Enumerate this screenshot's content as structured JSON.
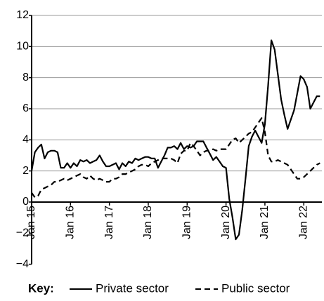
{
  "chart_data": {
    "type": "line",
    "legend_title": "Key:",
    "categories": [
      "Jan 15",
      null,
      null,
      null,
      null,
      null,
      null,
      null,
      null,
      null,
      null,
      null,
      "Jan 16",
      null,
      null,
      null,
      null,
      null,
      null,
      null,
      null,
      null,
      null,
      null,
      "Jan 17",
      null,
      null,
      null,
      null,
      null,
      null,
      null,
      null,
      null,
      null,
      null,
      "Jan 18",
      null,
      null,
      null,
      null,
      null,
      null,
      null,
      null,
      null,
      null,
      null,
      "Jan 19",
      null,
      null,
      null,
      null,
      null,
      null,
      null,
      null,
      null,
      null,
      null,
      "Jan 20",
      null,
      null,
      null,
      null,
      null,
      null,
      null,
      null,
      null,
      null,
      null,
      "Jan 21",
      null,
      null,
      null,
      null,
      null,
      null,
      null,
      null,
      null,
      null,
      null,
      "Jan 22",
      null,
      null,
      null,
      null,
      null
    ],
    "series": [
      {
        "name": "Private sector",
        "color": "#000000",
        "dash": false,
        "values": [
          2.0,
          3.2,
          3.5,
          3.7,
          2.8,
          3.2,
          3.3,
          3.3,
          3.2,
          2.2,
          2.2,
          2.5,
          2.2,
          2.5,
          2.3,
          2.7,
          2.6,
          2.7,
          2.5,
          2.6,
          2.7,
          3.0,
          2.6,
          2.3,
          2.3,
          2.4,
          2.5,
          2.1,
          2.5,
          2.3,
          2.6,
          2.5,
          2.8,
          2.7,
          2.8,
          2.9,
          2.9,
          2.8,
          2.8,
          2.2,
          2.6,
          3.0,
          3.5,
          3.5,
          3.6,
          3.4,
          3.8,
          3.4,
          3.6,
          3.5,
          3.6,
          3.9,
          3.9,
          3.9,
          3.5,
          3.1,
          2.7,
          2.9,
          2.6,
          2.3,
          2.2,
          0.2,
          -1.0,
          -2.4,
          -2.1,
          -0.5,
          1.5,
          3.6,
          4.2,
          4.6,
          4.2,
          3.8,
          5.0,
          7.5,
          10.4,
          9.8,
          8.2,
          6.6,
          5.6,
          4.7,
          5.3,
          5.9,
          7.0,
          8.1,
          7.9,
          7.4,
          6.0,
          6.4,
          6.8,
          6.8
        ]
      },
      {
        "name": "Public sector",
        "color": "#000000",
        "dash": true,
        "values": [
          0.6,
          0.3,
          0.4,
          0.8,
          0.9,
          1.0,
          1.1,
          1.3,
          1.3,
          1.4,
          1.5,
          1.4,
          1.5,
          1.6,
          1.7,
          1.8,
          1.6,
          1.5,
          1.7,
          1.5,
          1.4,
          1.5,
          1.4,
          1.3,
          1.3,
          1.5,
          1.5,
          1.6,
          1.8,
          1.8,
          1.9,
          2.0,
          2.1,
          2.3,
          2.4,
          2.4,
          2.3,
          2.5,
          2.6,
          2.7,
          2.8,
          2.8,
          2.8,
          2.8,
          2.7,
          2.5,
          3.1,
          3.3,
          3.3,
          3.8,
          3.6,
          3.3,
          3.0,
          3.2,
          3.3,
          3.3,
          3.4,
          3.3,
          3.4,
          3.4,
          3.4,
          3.7,
          4.0,
          4.1,
          3.8,
          4.0,
          4.2,
          4.4,
          4.5,
          4.8,
          5.1,
          5.4,
          4.5,
          3.0,
          2.6,
          2.6,
          2.7,
          2.6,
          2.5,
          2.4,
          2.1,
          1.8,
          1.5,
          1.5,
          1.6,
          1.8,
          2.0,
          2.2,
          2.4,
          2.5
        ]
      }
    ],
    "ylim": [
      -4,
      12
    ],
    "yticks": [
      {
        "value": -4,
        "label": "−4"
      },
      {
        "value": -2,
        "label": "−2"
      },
      0,
      2,
      4,
      6,
      8,
      10,
      12
    ],
    "grid": true
  }
}
